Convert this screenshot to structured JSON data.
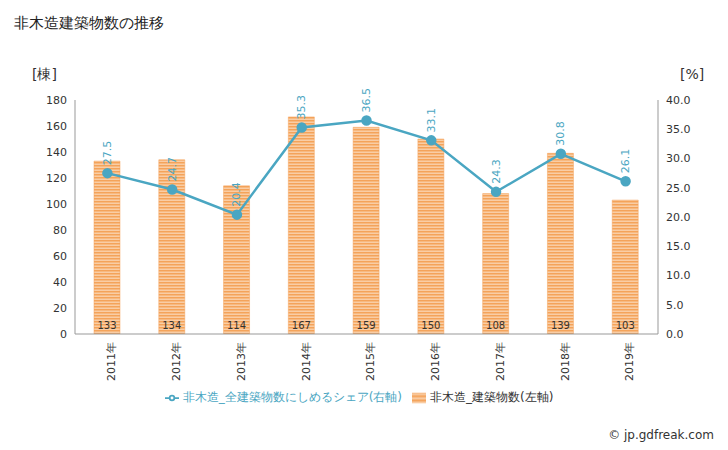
{
  "chart_data": {
    "type": "bar",
    "title": "非木造建築物数の推移",
    "categories": [
      "2011年",
      "2012年",
      "2013年",
      "2014年",
      "2015年",
      "2016年",
      "2017年",
      "2018年",
      "2019年"
    ],
    "y_label": "[棟]",
    "y2_label": "[%]",
    "ylim": [
      0,
      180
    ],
    "yticks": [
      0,
      20,
      40,
      60,
      80,
      100,
      120,
      140,
      160,
      180
    ],
    "y2lim": [
      0,
      40
    ],
    "y2ticks": [
      {
        "value": 0,
        "label": "0.0"
      },
      {
        "value": 5,
        "label": "5.0"
      },
      {
        "value": 10,
        "label": "10.0"
      },
      {
        "value": 15,
        "label": "15.0"
      },
      {
        "value": 20,
        "label": "20.0"
      },
      {
        "value": 25,
        "label": "25.0"
      },
      {
        "value": 30,
        "label": "30.0"
      },
      {
        "value": 35,
        "label": "35.0"
      },
      {
        "value": 40,
        "label": "40.0"
      }
    ],
    "grid": false,
    "legend": "bottom",
    "series": [
      {
        "name": "非木造_建築物数(左軸)",
        "type": "bar",
        "color": "#f4a35a",
        "data_labels": true,
        "values": [
          133,
          134,
          114,
          167,
          159,
          150,
          108,
          139,
          103
        ]
      },
      {
        "name": "非木造_全建築物数にしめるシェア(右軸)",
        "type": "line",
        "axis": "y2",
        "color": "#4aa6c2",
        "marker": "circle",
        "data_labels": true,
        "values": [
          27.5,
          24.7,
          20.4,
          35.3,
          36.5,
          33.1,
          24.3,
          30.8,
          26.1
        ]
      }
    ],
    "annotations": [
      "© jp.gdfreak.com"
    ]
  }
}
